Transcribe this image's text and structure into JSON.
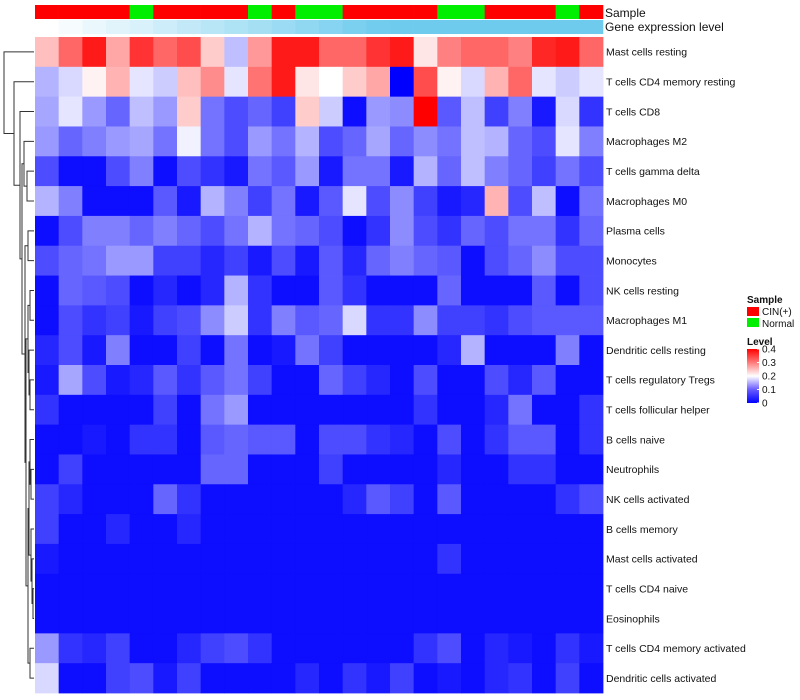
{
  "chart_data": {
    "type": "heatmap",
    "title": "",
    "annotation_labels": {
      "sample": "Sample",
      "gene_expression": "Gene expression level"
    },
    "columns_count": 24,
    "sample_annotation": [
      "CIN(+)",
      "CIN(+)",
      "CIN(+)",
      "CIN(+)",
      "Normal",
      "CIN(+)",
      "CIN(+)",
      "CIN(+)",
      "CIN(+)",
      "Normal",
      "CIN(+)",
      "Normal",
      "Normal",
      "CIN(+)",
      "CIN(+)",
      "CIN(+)",
      "CIN(+)",
      "Normal",
      "Normal",
      "CIN(+)",
      "CIN(+)",
      "CIN(+)",
      "Normal",
      "CIN(+)"
    ],
    "gene_expression_annotation": [
      0.0,
      0.04,
      0.09,
      0.13,
      0.17,
      0.22,
      0.26,
      0.3,
      0.35,
      0.39,
      0.43,
      0.48,
      0.52,
      0.57,
      0.61,
      0.65,
      0.7,
      0.74,
      0.78,
      0.83,
      0.87,
      0.91,
      0.96,
      1.0
    ],
    "rows": [
      "Mast cells resting",
      "T cells CD4 memory resting",
      "T cells CD8",
      "Macrophages M2",
      "T cells gamma delta",
      "Macrophages M0",
      "Plasma cells",
      "Monocytes",
      "NK cells resting",
      "Macrophages M1",
      "Dendritic cells resting",
      "T cells regulatory  Tregs",
      "T cells follicular helper",
      "B cells naive",
      "Neutrophils",
      "NK cells activated",
      "B cells memory",
      "Mast cells activated",
      "T cells CD4 naive",
      "Eosinophils",
      "T cells CD4 memory activated",
      "Dendritic cells activated"
    ],
    "values": [
      [
        0.25,
        0.32,
        0.38,
        0.27,
        0.36,
        0.32,
        0.34,
        0.24,
        0.15,
        0.28,
        0.38,
        0.38,
        0.32,
        0.32,
        0.36,
        0.38,
        0.22,
        0.3,
        0.32,
        0.32,
        0.3,
        0.37,
        0.38,
        0.32
      ],
      [
        0.14,
        0.17,
        0.21,
        0.26,
        0.18,
        0.16,
        0.25,
        0.29,
        0.18,
        0.31,
        0.38,
        0.22,
        0.2,
        0.24,
        0.27,
        0.0,
        0.34,
        0.21,
        0.17,
        0.26,
        0.32,
        0.18,
        0.16,
        0.18
      ],
      [
        0.13,
        0.18,
        0.12,
        0.08,
        0.15,
        0.12,
        0.24,
        0.09,
        0.06,
        0.08,
        0.05,
        0.24,
        0.16,
        0.01,
        0.12,
        0.11,
        0.4,
        0.07,
        0.15,
        0.05,
        0.1,
        0.02,
        0.17,
        0.04
      ],
      [
        0.12,
        0.08,
        0.1,
        0.12,
        0.13,
        0.09,
        0.19,
        0.09,
        0.06,
        0.12,
        0.09,
        0.14,
        0.06,
        0.08,
        0.13,
        0.08,
        0.11,
        0.09,
        0.15,
        0.14,
        0.08,
        0.06,
        0.18,
        0.1
      ],
      [
        0.06,
        0.01,
        0.01,
        0.06,
        0.1,
        0.01,
        0.06,
        0.04,
        0.02,
        0.09,
        0.07,
        0.12,
        0.02,
        0.09,
        0.09,
        0.02,
        0.14,
        0.08,
        0.15,
        0.1,
        0.08,
        0.05,
        0.09,
        0.06
      ],
      [
        0.14,
        0.1,
        0.01,
        0.01,
        0.01,
        0.07,
        0.02,
        0.14,
        0.1,
        0.05,
        0.09,
        0.02,
        0.07,
        0.18,
        0.06,
        0.11,
        0.05,
        0.02,
        0.03,
        0.26,
        0.06,
        0.15,
        0.01,
        0.09
      ],
      [
        0.01,
        0.06,
        0.1,
        0.1,
        0.08,
        0.1,
        0.08,
        0.06,
        0.09,
        0.14,
        0.09,
        0.08,
        0.06,
        0.01,
        0.04,
        0.11,
        0.06,
        0.04,
        0.08,
        0.06,
        0.09,
        0.09,
        0.04,
        0.08
      ],
      [
        0.06,
        0.08,
        0.09,
        0.12,
        0.12,
        0.05,
        0.05,
        0.03,
        0.05,
        0.02,
        0.06,
        0.02,
        0.07,
        0.03,
        0.08,
        0.1,
        0.08,
        0.07,
        0.01,
        0.06,
        0.08,
        0.11,
        0.06,
        0.06
      ],
      [
        0.01,
        0.08,
        0.07,
        0.06,
        0.01,
        0.03,
        0.01,
        0.03,
        0.14,
        0.04,
        0.01,
        0.01,
        0.07,
        0.04,
        0.01,
        0.01,
        0.01,
        0.08,
        0.01,
        0.01,
        0.01,
        0.07,
        0.01,
        0.06
      ],
      [
        0.01,
        0.06,
        0.04,
        0.05,
        0.02,
        0.05,
        0.06,
        0.11,
        0.16,
        0.04,
        0.1,
        0.07,
        0.08,
        0.17,
        0.04,
        0.04,
        0.11,
        0.05,
        0.05,
        0.04,
        0.06,
        0.07,
        0.07,
        0.07
      ],
      [
        0.03,
        0.06,
        0.02,
        0.1,
        0.01,
        0.01,
        0.05,
        0.01,
        0.09,
        0.01,
        0.02,
        0.09,
        0.05,
        0.01,
        0.01,
        0.01,
        0.01,
        0.03,
        0.14,
        0.01,
        0.01,
        0.01,
        0.1,
        0.01
      ],
      [
        0.02,
        0.13,
        0.06,
        0.02,
        0.03,
        0.07,
        0.04,
        0.07,
        0.09,
        0.05,
        0.01,
        0.01,
        0.08,
        0.05,
        0.03,
        0.01,
        0.06,
        0.01,
        0.01,
        0.06,
        0.03,
        0.07,
        0.01,
        0.01
      ],
      [
        0.04,
        0.01,
        0.01,
        0.01,
        0.01,
        0.05,
        0.01,
        0.09,
        0.12,
        0.01,
        0.01,
        0.01,
        0.01,
        0.01,
        0.01,
        0.01,
        0.04,
        0.01,
        0.01,
        0.03,
        0.09,
        0.01,
        0.01,
        0.04
      ],
      [
        0.01,
        0.01,
        0.02,
        0.01,
        0.04,
        0.04,
        0.01,
        0.07,
        0.08,
        0.07,
        0.07,
        0.01,
        0.06,
        0.06,
        0.04,
        0.03,
        0.01,
        0.06,
        0.01,
        0.04,
        0.07,
        0.07,
        0.01,
        0.04
      ],
      [
        0.01,
        0.05,
        0.01,
        0.01,
        0.01,
        0.01,
        0.01,
        0.08,
        0.08,
        0.01,
        0.01,
        0.01,
        0.05,
        0.01,
        0.01,
        0.01,
        0.01,
        0.03,
        0.01,
        0.01,
        0.04,
        0.04,
        0.01,
        0.01
      ],
      [
        0.05,
        0.03,
        0.01,
        0.01,
        0.01,
        0.08,
        0.04,
        0.01,
        0.01,
        0.01,
        0.01,
        0.01,
        0.01,
        0.03,
        0.07,
        0.05,
        0.01,
        0.07,
        0.01,
        0.01,
        0.01,
        0.01,
        0.04,
        0.06
      ],
      [
        0.05,
        0.01,
        0.01,
        0.03,
        0.01,
        0.01,
        0.03,
        0.01,
        0.01,
        0.01,
        0.01,
        0.01,
        0.01,
        0.01,
        0.01,
        0.01,
        0.01,
        0.01,
        0.01,
        0.01,
        0.01,
        0.01,
        0.01,
        0.01
      ],
      [
        0.02,
        0.01,
        0.01,
        0.01,
        0.01,
        0.01,
        0.01,
        0.01,
        0.01,
        0.01,
        0.01,
        0.01,
        0.01,
        0.01,
        0.01,
        0.01,
        0.01,
        0.04,
        0.01,
        0.01,
        0.01,
        0.01,
        0.01,
        0.01
      ],
      [
        0.01,
        0.01,
        0.01,
        0.01,
        0.01,
        0.01,
        0.01,
        0.01,
        0.01,
        0.01,
        0.01,
        0.01,
        0.01,
        0.01,
        0.01,
        0.01,
        0.01,
        0.01,
        0.01,
        0.01,
        0.01,
        0.01,
        0.01,
        0.01
      ],
      [
        0.01,
        0.01,
        0.01,
        0.01,
        0.01,
        0.01,
        0.01,
        0.01,
        0.01,
        0.01,
        0.01,
        0.01,
        0.01,
        0.01,
        0.01,
        0.01,
        0.01,
        0.01,
        0.01,
        0.01,
        0.01,
        0.01,
        0.01,
        0.01
      ],
      [
        0.12,
        0.04,
        0.03,
        0.05,
        0.01,
        0.01,
        0.03,
        0.05,
        0.06,
        0.04,
        0.01,
        0.01,
        0.01,
        0.01,
        0.01,
        0.01,
        0.04,
        0.06,
        0.01,
        0.03,
        0.02,
        0.01,
        0.04,
        0.02
      ],
      [
        0.17,
        0.01,
        0.01,
        0.05,
        0.06,
        0.02,
        0.05,
        0.01,
        0.01,
        0.01,
        0.01,
        0.03,
        0.01,
        0.04,
        0.02,
        0.05,
        0.01,
        0.02,
        0.01,
        0.03,
        0.04,
        0.01,
        0.05,
        0.01
      ]
    ],
    "legend": {
      "sample_title": "Sample",
      "sample_entries": [
        {
          "label": "CIN(+)",
          "color": "#ff0000"
        },
        {
          "label": "Normal",
          "color": "#00ee00"
        }
      ],
      "level_title": "Level",
      "level_ticks": [
        "0.4",
        "0.3",
        "0.2",
        "0.1",
        "0"
      ],
      "level_tick_values": [
        0.4,
        0.3,
        0.2,
        0.1,
        0
      ]
    },
    "color_scale": {
      "min": 0,
      "max": 0.4,
      "low": "#0000ff",
      "mid": "#ffffff",
      "high": "#ff0000"
    },
    "gene_expression_colors": {
      "low": "#ffffff",
      "high": "#6ecbee"
    },
    "dendrogram": "left, hierarchical clustering of rows"
  }
}
